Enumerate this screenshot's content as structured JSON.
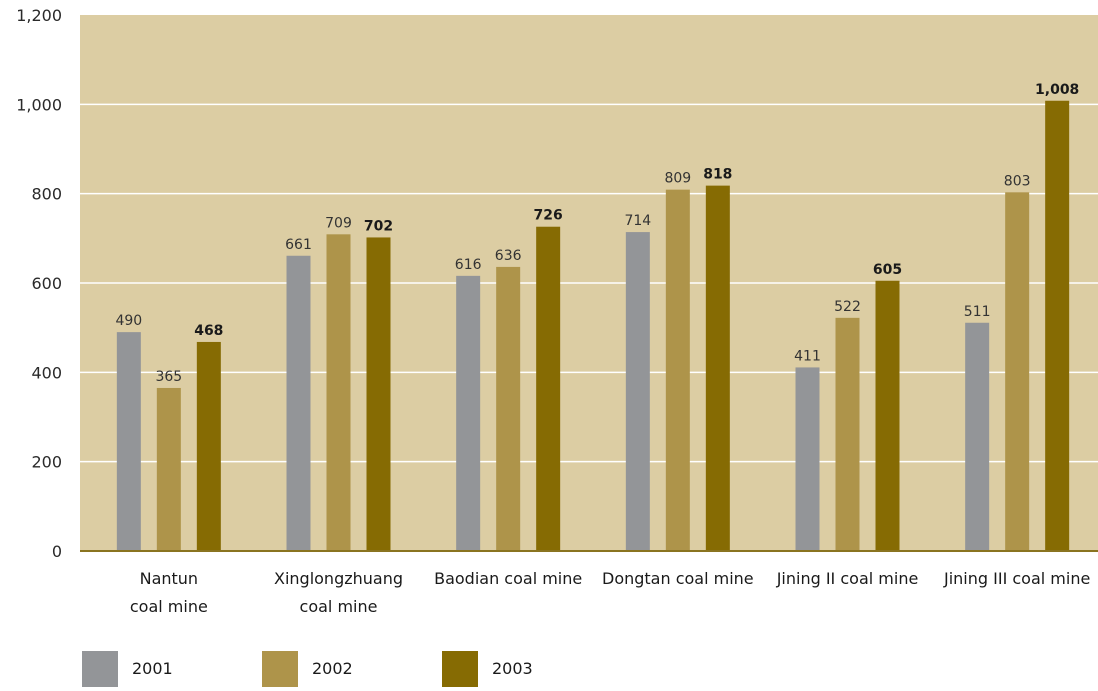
{
  "chart_data": {
    "type": "bar",
    "categories": [
      [
        "Nantun",
        "coal mine"
      ],
      [
        "Xinglongzhuang",
        "coal mine"
      ],
      [
        "Baodian coal mine"
      ],
      [
        "Dongtan coal mine"
      ],
      [
        "Jining II coal mine"
      ],
      [
        "Jining III coal mine"
      ]
    ],
    "series": [
      {
        "name": "2001",
        "color": "#939598",
        "values": [
          490,
          661,
          616,
          714,
          411,
          511
        ],
        "labels": [
          "490",
          "661",
          "616",
          "714",
          "411",
          "511"
        ],
        "bold_labels": false
      },
      {
        "name": "2002",
        "color": "#ae944a",
        "values": [
          365,
          709,
          636,
          809,
          522,
          803
        ],
        "labels": [
          "365",
          "709",
          "636",
          "809",
          "522",
          "803"
        ],
        "bold_labels": false
      },
      {
        "name": "2003",
        "color": "#866b03",
        "values": [
          468,
          702,
          726,
          818,
          605,
          1008
        ],
        "labels": [
          "468",
          "702",
          "726",
          "818",
          "605",
          "1,008"
        ],
        "bold_labels": true
      }
    ],
    "ylim": [
      0,
      1200
    ],
    "yticks": [
      0,
      200,
      400,
      600,
      800,
      1000,
      1200
    ],
    "ytick_labels": [
      "0",
      "200",
      "400",
      "600",
      "800",
      "1,000",
      "1,200"
    ],
    "grid": true,
    "legend_position": "bottom-left",
    "plot_background": "#dccda3",
    "gridline_color": "#ffffff",
    "baseline_color": "#8a7420"
  }
}
